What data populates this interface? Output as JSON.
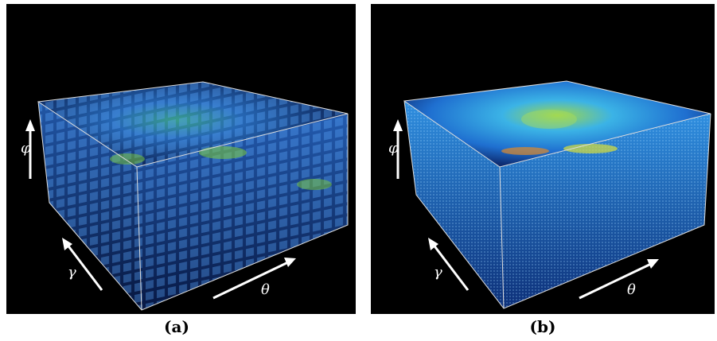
{
  "panels": [
    {
      "caption": "(a)",
      "axis_labels": {
        "vertical": "φ",
        "depth": "γ",
        "horizontal": "θ"
      }
    },
    {
      "caption": "(b)",
      "axis_labels": {
        "vertical": "φ",
        "depth": "γ",
        "horizontal": "θ"
      }
    }
  ]
}
